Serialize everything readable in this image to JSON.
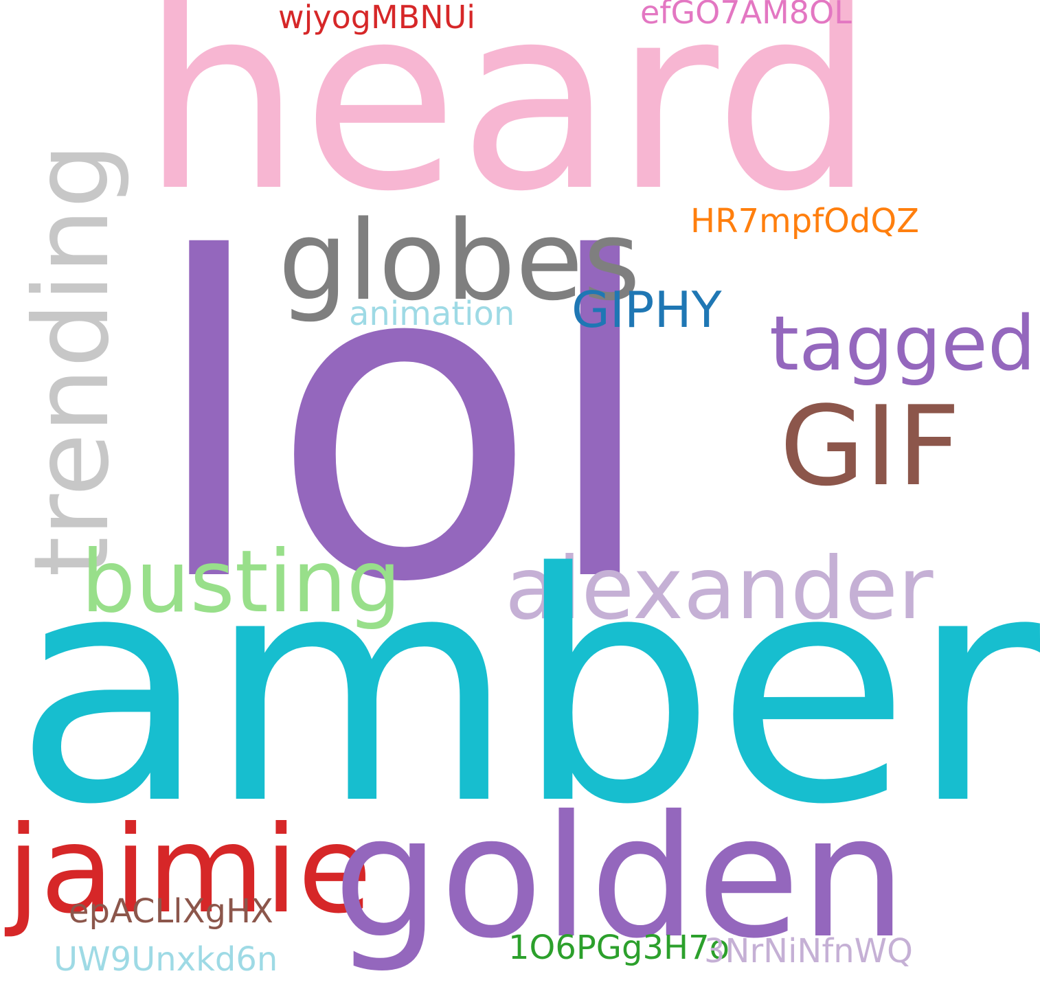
{
  "words": {
    "lol": {
      "text": "lol",
      "color": "#9467bd"
    },
    "amber": {
      "text": "amber",
      "color": "#17becf"
    },
    "heard": {
      "text": "heard",
      "color": "#f7b6d2"
    },
    "trending": {
      "text": "trending",
      "color": "#c7c7c7"
    },
    "golden": {
      "text": "golden",
      "color": "#9467bd"
    },
    "globes": {
      "text": "globes",
      "color": "#7f7f7f"
    },
    "alexander": {
      "text": "alexander",
      "color": "#c5b0d5"
    },
    "jaimie": {
      "text": "jaimie",
      "color": "#d62728"
    },
    "busting": {
      "text": "busting",
      "color": "#98df8a"
    },
    "gif": {
      "text": "GIF",
      "color": "#8c564b"
    },
    "tagged": {
      "text": "tagged",
      "color": "#9467bd"
    },
    "giphy": {
      "text": "GIPHY",
      "color": "#1f77b4"
    },
    "animation": {
      "text": "animation",
      "color": "#9edae5"
    },
    "hr7": {
      "text": "HR7mpfOdQZ",
      "color": "#ff7f0e"
    },
    "wjy": {
      "text": "wjyogMBNUi",
      "color": "#d62728"
    },
    "efg": {
      "text": "efGO7AM8OL",
      "color": "#e377c2"
    },
    "epa": {
      "text": "epACLlXgHX",
      "color": "#8c564b"
    },
    "io6": {
      "text": "1O6PGg3H7o",
      "color": "#2ca02c"
    },
    "nrn": {
      "text": "3NrNiNfnWQ",
      "color": "#c5b0d5"
    },
    "uw9": {
      "text": "UW9Unxkd6n",
      "color": "#9edae5"
    }
  }
}
